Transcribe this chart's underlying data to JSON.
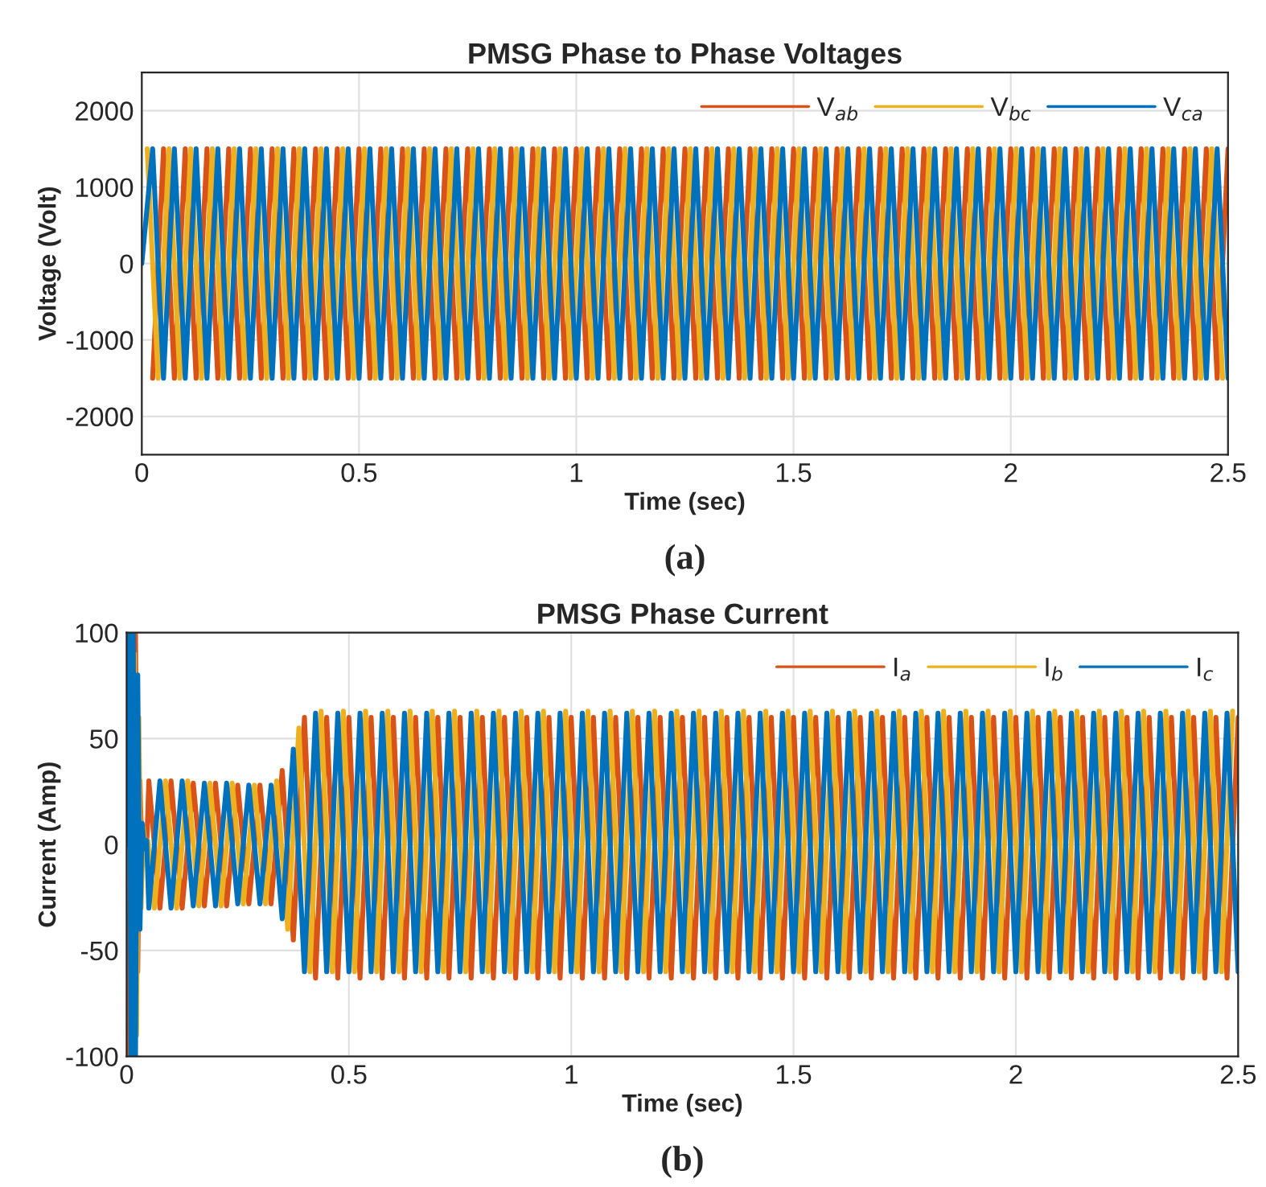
{
  "chart_data": [
    {
      "type": "line",
      "title": "PMSG Phase to Phase Voltages",
      "xlabel": "Time (sec)",
      "ylabel": "Voltage (Volt)",
      "annotations": [
        "(a)"
      ],
      "xlim": [
        0,
        2.5
      ],
      "xticks": [
        0,
        0.5,
        1,
        1.5,
        2,
        2.5
      ],
      "ylim": [
        -2500,
        2500
      ],
      "yticks": [
        -2000,
        -1000,
        0,
        1000,
        2000
      ],
      "grid": true,
      "legend": "top right",
      "x": [
        0,
        0.025,
        0.05,
        0.075,
        0.1,
        0.125,
        0.15,
        0.175,
        0.2,
        0.225,
        0.25,
        0.275,
        0.3,
        0.325,
        0.35,
        0.375,
        0.4,
        0.425,
        0.45,
        0.475,
        0.5,
        0.525,
        0.55,
        0.575,
        0.6,
        0.625,
        0.65,
        0.675,
        0.7,
        0.725,
        0.75,
        0.775,
        0.8,
        0.825,
        0.85,
        0.875,
        0.9,
        0.925,
        0.95,
        0.975,
        1,
        1.025,
        1.05,
        1.075,
        1.1,
        1.125,
        1.15,
        1.175,
        1.2,
        1.225,
        1.25,
        1.275,
        1.3,
        1.325,
        1.35,
        1.375,
        1.4,
        1.425,
        1.45,
        1.475,
        1.5,
        1.525,
        1.55,
        1.575,
        1.6,
        1.625,
        1.65,
        1.675,
        1.7,
        1.725,
        1.75,
        1.775,
        1.8,
        1.825,
        1.85,
        1.875,
        1.9,
        1.925,
        1.95,
        1.975,
        2,
        2.025,
        2.05,
        2.075,
        2.1,
        2.125,
        2.15,
        2.175,
        2.2,
        2.225,
        2.25,
        2.275,
        2.3,
        2.325,
        2.35,
        2.375,
        2.4,
        2.425,
        2.45,
        2.475,
        2.5
      ],
      "series": [
        {
          "name": "V$_{ab}$",
          "color": "#d95319",
          "values": [
            null,
            -1500,
            1500,
            -1500,
            1500,
            -1500,
            1500,
            -1500,
            1500,
            -1500,
            1500,
            -1500,
            1500,
            -1500,
            1500,
            -1500,
            1500,
            -1500,
            1500,
            -1500,
            1500,
            -1500,
            1500,
            -1500,
            1500,
            -1500,
            1500,
            -1500,
            1500,
            -1500,
            1500,
            -1500,
            1500,
            -1500,
            1500,
            -1500,
            1500,
            -1500,
            1500,
            -1500,
            1500,
            -1500,
            1500,
            -1500,
            1500,
            -1500,
            1500,
            -1500,
            1500,
            -1500,
            1500,
            -1500,
            1500,
            -1500,
            1500,
            -1500,
            1500,
            -1500,
            1500,
            -1500,
            1500,
            -1500,
            1500,
            -1500,
            1500,
            -1500,
            1500,
            -1500,
            1500,
            -1500,
            1500,
            -1500,
            1500,
            -1500,
            1500,
            -1500,
            1500,
            -1500,
            1500,
            -1500,
            1500,
            -1500,
            1500,
            -1500,
            1500,
            -1500,
            1500,
            -1500,
            1500,
            -1500,
            1500,
            -1500,
            1500,
            -1500,
            1500,
            -1500,
            1500,
            -1500,
            1500,
            -1500,
            1500
          ]
        },
        {
          "name": "V$_{bc}$",
          "color": "#edb120",
          "x": [
            0.0125,
            0.0375,
            0.0625,
            0.0875,
            0.1125,
            0.1375,
            0.1625,
            0.1875,
            0.2125,
            0.2375,
            0.2625,
            0.2875,
            0.3125,
            0.3375,
            0.3625,
            0.3875,
            0.4125,
            0.4375,
            0.4625,
            0.4875,
            0.5125,
            0.5375,
            0.5625,
            0.5875,
            0.6125,
            0.6375,
            0.6625,
            0.6875,
            0.7125,
            0.7375,
            0.7625,
            0.7875,
            0.8125,
            0.8375,
            0.8625,
            0.8875,
            0.9125,
            0.9375,
            0.9625,
            0.9875,
            1.0125,
            1.0375,
            1.0625,
            1.0875,
            1.1125,
            1.1375,
            1.1625,
            1.1875,
            1.2125,
            1.2375,
            1.2625,
            1.2875,
            1.3125,
            1.3375,
            1.3625,
            1.3875,
            1.4125,
            1.4375,
            1.4625,
            1.4875,
            1.5125,
            1.5375,
            1.5625,
            1.5875,
            1.6125,
            1.6375,
            1.6625,
            1.6875,
            1.7125,
            1.7375,
            1.7625,
            1.7875,
            1.8125,
            1.8375,
            1.8625,
            1.8875,
            1.9125,
            1.9375,
            1.9625,
            1.9875,
            2.0125,
            2.0375,
            2.0625,
            2.0875,
            2.1125,
            2.1375,
            2.1625,
            2.1875,
            2.2125,
            2.2375,
            2.2625,
            2.2875,
            2.3125,
            2.3375,
            2.3625,
            2.3875,
            2.4125,
            2.4375,
            2.4625,
            2.4875
          ],
          "values": [
            1500,
            -1500,
            1500,
            -1500,
            1500,
            -1500,
            1500,
            -1500,
            1500,
            -1500,
            1500,
            -1500,
            1500,
            -1500,
            1500,
            -1500,
            1500,
            -1500,
            1500,
            -1500,
            1500,
            -1500,
            1500,
            -1500,
            1500,
            -1500,
            1500,
            -1500,
            1500,
            -1500,
            1500,
            -1500,
            1500,
            -1500,
            1500,
            -1500,
            1500,
            -1500,
            1500,
            -1500,
            1500,
            -1500,
            1500,
            -1500,
            1500,
            -1500,
            1500,
            -1500,
            1500,
            -1500,
            1500,
            -1500,
            1500,
            -1500,
            1500,
            -1500,
            1500,
            -1500,
            1500,
            -1500,
            1500,
            -1500,
            1500,
            -1500,
            1500,
            -1500,
            1500,
            -1500,
            1500,
            -1500,
            1500,
            -1500,
            1500,
            -1500,
            1500,
            -1500,
            1500,
            -1500,
            1500,
            -1500,
            1500,
            -1500,
            1500,
            -1500,
            1500,
            -1500,
            1500,
            -1500,
            1500,
            -1500,
            1500,
            -1500,
            1500,
            -1500,
            1500,
            -1500,
            1500,
            -1500,
            1500,
            -1500
          ]
        },
        {
          "name": "V$_{ca}$",
          "color": "#0072bd",
          "values": [
            0,
            1500,
            -1500,
            1500,
            -1500,
            1500,
            -1500,
            1500,
            -1500,
            1500,
            -1500,
            1500,
            -1500,
            1500,
            -1500,
            1500,
            -1500,
            1500,
            -1500,
            1500,
            -1500,
            1500,
            -1500,
            1500,
            -1500,
            1500,
            -1500,
            1500,
            -1500,
            1500,
            -1500,
            1500,
            -1500,
            1500,
            -1500,
            1500,
            -1500,
            1500,
            -1500,
            1500,
            -1500,
            1500,
            -1500,
            1500,
            -1500,
            1500,
            -1500,
            1500,
            -1500,
            1500,
            -1500,
            1500,
            -1500,
            1500,
            -1500,
            1500,
            -1500,
            1500,
            -1500,
            1500,
            -1500,
            1500,
            -1500,
            1500,
            -1500,
            1500,
            -1500,
            1500,
            -1500,
            1500,
            -1500,
            1500,
            -1500,
            1500,
            -1500,
            1500,
            -1500,
            1500,
            -1500,
            1500,
            -1500,
            1500,
            -1500,
            1500,
            -1500,
            1500,
            -1500,
            1500,
            -1500,
            1500,
            -1500,
            1500,
            -1500,
            1500,
            -1500,
            1500,
            -1500,
            1500,
            -1500,
            1500,
            -1500
          ]
        }
      ]
    },
    {
      "type": "line",
      "title": "PMSG Phase Current",
      "xlabel": "Time (sec)",
      "ylabel": "Current (Amp)",
      "annotations": [
        "(b)"
      ],
      "xlim": [
        0,
        2.5
      ],
      "xticks": [
        0,
        0.5,
        1,
        1.5,
        2,
        2.5
      ],
      "ylim": [
        -100,
        100
      ],
      "yticks": [
        -100,
        -50,
        0,
        50,
        100
      ],
      "grid": true,
      "legend": "top right",
      "x": [
        0,
        0.005,
        0.01,
        0.015,
        0.02,
        0.025,
        0.03,
        0.035,
        0.04,
        0.045,
        0.05,
        0.075,
        0.1,
        0.125,
        0.15,
        0.175,
        0.2,
        0.225,
        0.25,
        0.275,
        0.3,
        0.325,
        0.35,
        0.375,
        0.4,
        0.425,
        0.45,
        0.475,
        0.5,
        0.525,
        0.55,
        0.575,
        0.6,
        0.625,
        0.65,
        0.675,
        0.7,
        0.725,
        0.75,
        0.775,
        0.8,
        0.825,
        0.85,
        0.875,
        0.9,
        0.925,
        0.95,
        0.975,
        1,
        1.025,
        1.05,
        1.075,
        1.1,
        1.125,
        1.15,
        1.175,
        1.2,
        1.225,
        1.25,
        1.275,
        1.3,
        1.325,
        1.35,
        1.375,
        1.4,
        1.425,
        1.45,
        1.475,
        1.5,
        1.525,
        1.55,
        1.575,
        1.6,
        1.625,
        1.65,
        1.675,
        1.7,
        1.725,
        1.75,
        1.775,
        1.8,
        1.825,
        1.85,
        1.875,
        1.9,
        1.925,
        1.95,
        1.975,
        2,
        2.025,
        2.05,
        2.075,
        2.1,
        2.125,
        2.15,
        2.175,
        2.2,
        2.225,
        2.25,
        2.275,
        2.3,
        2.325,
        2.35,
        2.375,
        2.4,
        2.425,
        2.45,
        2.475,
        2.5
      ],
      "series": [
        {
          "name": "I$_{a}$",
          "color": "#d95319",
          "values": [
            null,
            -100,
            100,
            -100,
            100,
            -60,
            30,
            -10,
            2,
            -2,
            30,
            -30,
            30,
            -30,
            29,
            -29,
            29,
            -29,
            28,
            -28,
            28,
            -28,
            35,
            -45,
            60,
            -63,
            60,
            -63,
            60,
            -63,
            60,
            -63,
            60,
            -63,
            60,
            -63,
            60,
            -63,
            60,
            -63,
            60,
            -63,
            60,
            -63,
            60,
            -63,
            60,
            -63,
            60,
            -63,
            60,
            -63,
            60,
            -63,
            60,
            -63,
            60,
            -63,
            60,
            -63,
            60,
            -63,
            60,
            -63,
            60,
            -63,
            60,
            -63,
            60,
            -63,
            60,
            -63,
            60,
            -63,
            60,
            -63,
            60,
            -63,
            60,
            -63,
            60,
            -63,
            60,
            -63,
            60,
            -63,
            60,
            -63,
            60,
            -63,
            60,
            -63,
            60,
            -63,
            60,
            -63,
            60,
            -63,
            60,
            -63,
            60,
            -63,
            60,
            -63,
            60,
            -63,
            60,
            -63,
            60
          ]
        },
        {
          "name": "I$_{b}$",
          "color": "#edb120",
          "x": [
            0.0125,
            0.0175,
            0.0225,
            0.0275,
            0.0325,
            0.0375,
            0.0425,
            0.0475,
            0.0625,
            0.0875,
            0.1125,
            0.1375,
            0.1625,
            0.1875,
            0.2125,
            0.2375,
            0.2625,
            0.2875,
            0.3125,
            0.3375,
            0.3625,
            0.3875,
            0.4125,
            0.4375,
            0.4625,
            0.4875,
            0.5125,
            0.5375,
            0.5625,
            0.5875,
            0.6125,
            0.6375,
            0.6625,
            0.6875,
            0.7125,
            0.7375,
            0.7625,
            0.7875,
            0.8125,
            0.8375,
            0.8625,
            0.8875,
            0.9125,
            0.9375,
            0.9625,
            0.9875,
            1.0125,
            1.0375,
            1.0625,
            1.0875,
            1.1125,
            1.1375,
            1.1625,
            1.1875,
            1.2125,
            1.2375,
            1.2625,
            1.2875,
            1.3125,
            1.3375,
            1.3625,
            1.3875,
            1.4125,
            1.4375,
            1.4625,
            1.4875,
            1.5125,
            1.5375,
            1.5625,
            1.5875,
            1.6125,
            1.6375,
            1.6625,
            1.6875,
            1.7125,
            1.7375,
            1.7625,
            1.7875,
            1.8125,
            1.8375,
            1.8625,
            1.8875,
            1.9125,
            1.9375,
            1.9625,
            1.9875,
            2.0125,
            2.0375,
            2.0625,
            2.0875,
            2.1125,
            2.1375,
            2.1625,
            2.1875,
            2.2125,
            2.2375,
            2.2625,
            2.2875,
            2.3125,
            2.3375,
            2.3625,
            2.3875,
            2.4125,
            2.4375,
            2.4625,
            2.4875
          ],
          "values": [
            -90,
            90,
            -90,
            60,
            -30,
            8,
            -2,
            2,
            -30,
            30,
            -30,
            30,
            -29,
            29,
            -29,
            29,
            -28,
            28,
            -28,
            30,
            -40,
            55,
            -60,
            63,
            -60,
            63,
            -60,
            63,
            -60,
            63,
            -60,
            63,
            -60,
            63,
            -60,
            63,
            -60,
            63,
            -60,
            63,
            -60,
            63,
            -60,
            63,
            -60,
            63,
            -60,
            63,
            -60,
            63,
            -60,
            63,
            -60,
            63,
            -60,
            63,
            -60,
            63,
            -60,
            63,
            -60,
            63,
            -60,
            63,
            -60,
            63,
            -60,
            63,
            -60,
            63,
            -60,
            63,
            -60,
            63,
            -60,
            63,
            -60,
            63,
            -60,
            63,
            -60,
            63,
            -60,
            63,
            -60,
            63,
            -60,
            63,
            -60,
            63,
            -60,
            63,
            -60,
            63,
            -60,
            63,
            -60,
            63,
            -60,
            63,
            -60,
            63,
            -60,
            63,
            -60,
            63
          ]
        },
        {
          "name": "I$_{c}$",
          "color": "#0072bd",
          "values": [
            0,
            100,
            -100,
            100,
            -100,
            80,
            -40,
            10,
            -2,
            2,
            -30,
            30,
            -30,
            30,
            -29,
            29,
            -29,
            29,
            -28,
            28,
            -28,
            28,
            -35,
            45,
            -60,
            62,
            -60,
            62,
            -60,
            62,
            -60,
            62,
            -60,
            62,
            -60,
            62,
            -60,
            62,
            -60,
            62,
            -60,
            62,
            -60,
            62,
            -60,
            62,
            -60,
            62,
            -60,
            62,
            -60,
            62,
            -60,
            62,
            -60,
            62,
            -60,
            62,
            -60,
            62,
            -60,
            62,
            -60,
            62,
            -60,
            62,
            -60,
            62,
            -60,
            62,
            -60,
            62,
            -60,
            62,
            -60,
            62,
            -60,
            62,
            -60,
            62,
            -60,
            62,
            -60,
            62,
            -60,
            62,
            -60,
            62,
            -60,
            62,
            -60,
            62,
            -60,
            62,
            -60,
            62,
            -60,
            62,
            -60,
            62,
            -60,
            62,
            -60,
            62,
            -60,
            62,
            -60,
            62,
            -60
          ]
        }
      ]
    }
  ]
}
